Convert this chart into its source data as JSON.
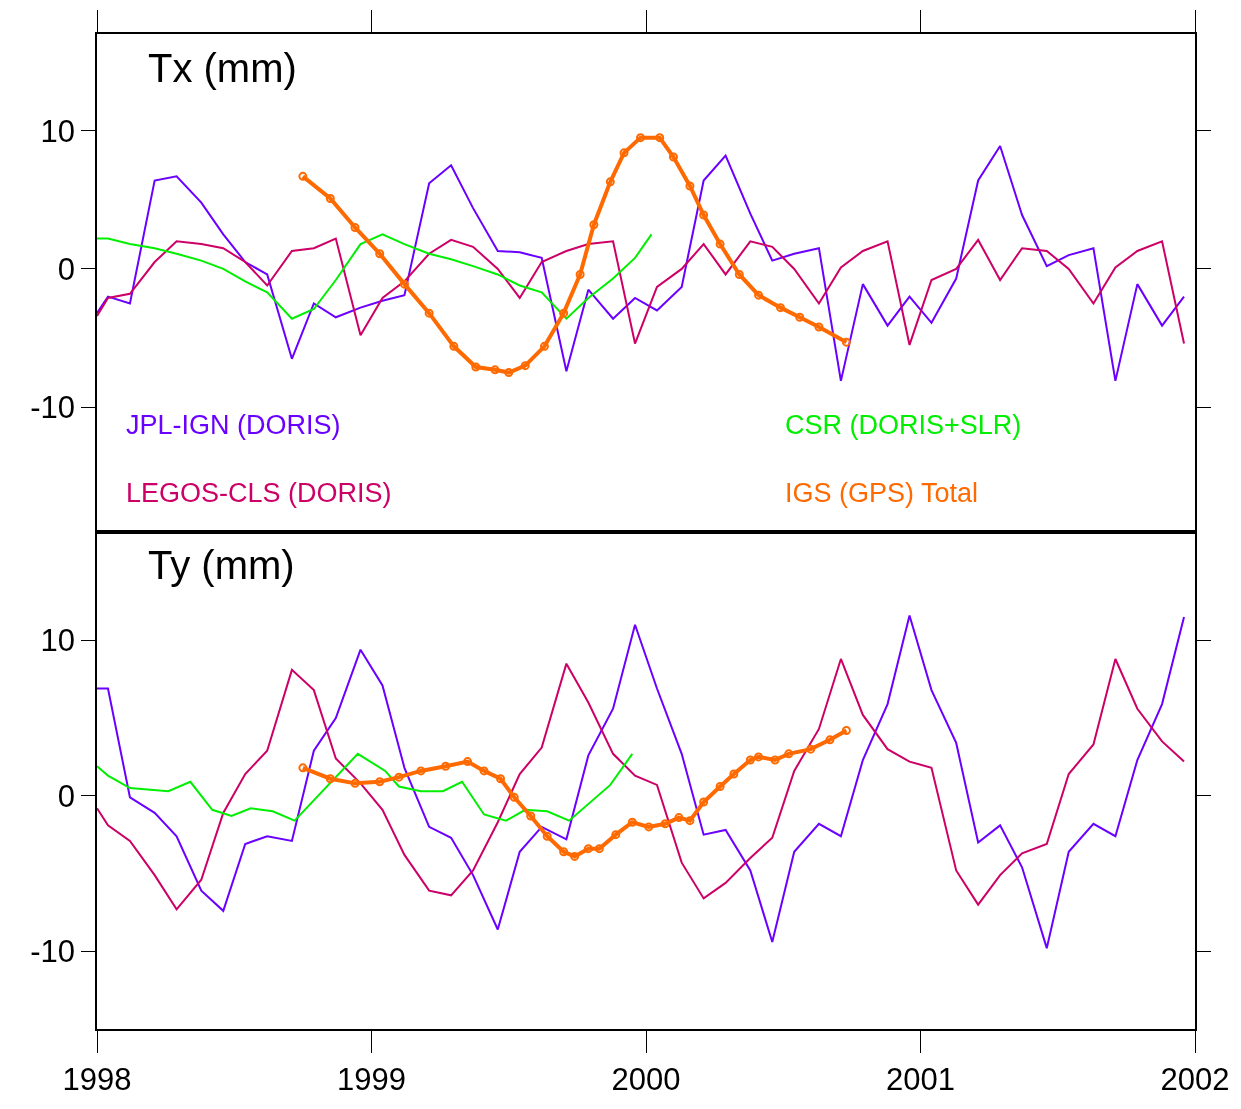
{
  "chart_data": [
    {
      "type": "line",
      "title": "Tx (mm)",
      "xlim": [
        1998,
        2002
      ],
      "xticks": [
        1998,
        1999,
        2000,
        2001,
        2002
      ],
      "ylim": [
        -19,
        17
      ],
      "yticks": [
        -10,
        0,
        10
      ],
      "tick_labels": "y",
      "grid": false,
      "series": [
        {
          "name": "JPL-IGN (DORIS)",
          "color": "#6a00ff",
          "x": [
            1998.0,
            1998.04,
            1998.12,
            1998.21,
            1998.29,
            1998.38,
            1998.46,
            1998.54,
            1998.62,
            1998.71,
            1998.79,
            1998.87,
            1998.96,
            1999.04,
            1999.12,
            1999.21,
            1999.29,
            1999.37,
            1999.46,
            1999.54,
            1999.62,
            1999.71,
            1999.79,
            1999.88,
            1999.96,
            2000.04,
            2000.13,
            2000.21,
            2000.29,
            2000.38,
            2000.46,
            2000.54,
            2000.63,
            2000.71,
            2000.79,
            2000.88,
            2000.96,
            2001.04,
            2001.13,
            2001.21,
            2001.29,
            2001.37,
            2001.46,
            2001.54,
            2001.63,
            2001.71,
            2001.79,
            2001.88,
            2001.96
          ],
          "values": [
            -3.2,
            -2.0,
            -2.5,
            6.4,
            6.7,
            4.8,
            2.5,
            0.5,
            -0.4,
            -6.5,
            -2.5,
            -3.5,
            -2.8,
            -2.3,
            -1.9,
            6.2,
            7.5,
            4.4,
            1.3,
            1.2,
            0.8,
            -7.4,
            -1.5,
            -3.6,
            -2.1,
            -3.0,
            -1.3,
            6.4,
            8.2,
            4.0,
            0.6,
            1.1,
            1.5,
            -8.1,
            -1.1,
            -4.1,
            -2.0,
            -3.9,
            -0.7,
            6.4,
            8.9,
            3.9,
            0.2,
            1.0,
            1.5,
            -8.1,
            -1.1,
            -4.1,
            -2.0
          ]
        },
        {
          "name": "LEGOS-CLS (DORIS)",
          "color": "#cc0066",
          "x": [
            1998.0,
            1998.04,
            1998.12,
            1998.21,
            1998.29,
            1998.38,
            1998.46,
            1998.54,
            1998.62,
            1998.71,
            1998.79,
            1998.87,
            1998.96,
            1999.04,
            1999.12,
            1999.21,
            1999.29,
            1999.37,
            1999.46,
            1999.54,
            1999.62,
            1999.71,
            1999.79,
            1999.88,
            1999.96,
            2000.04,
            2000.13,
            2000.21,
            2000.29,
            2000.38,
            2000.46,
            2000.54,
            2000.63,
            2000.71,
            2000.79,
            2000.88,
            2000.96,
            2001.04,
            2001.13,
            2001.21,
            2001.29,
            2001.37,
            2001.46,
            2001.54,
            2001.63,
            2001.71,
            2001.79,
            2001.88,
            2001.96
          ],
          "values": [
            -3.4,
            -2.1,
            -1.8,
            0.5,
            2.0,
            1.8,
            1.5,
            0.5,
            -1.2,
            1.3,
            1.5,
            2.2,
            -4.8,
            -2.1,
            -0.9,
            1.1,
            2.1,
            1.6,
            0.0,
            -2.1,
            0.5,
            1.3,
            1.8,
            2.0,
            -5.4,
            -1.3,
            0.0,
            1.8,
            -0.4,
            2.0,
            1.6,
            0.0,
            -2.5,
            0.1,
            1.3,
            2.0,
            -5.5,
            -0.8,
            0.0,
            2.1,
            -0.8,
            1.5,
            1.3,
            0.0,
            -2.5,
            0.1,
            1.3,
            2.0,
            -5.4
          ]
        },
        {
          "name": "CSR (DORIS+SLR)",
          "color": "#00ee00",
          "x": [
            1998.0,
            1998.04,
            1998.12,
            1998.21,
            1998.29,
            1998.38,
            1998.46,
            1998.54,
            1998.62,
            1998.71,
            1998.79,
            1998.87,
            1998.96,
            1999.04,
            1999.12,
            1999.21,
            1999.29,
            1999.37,
            1999.46,
            1999.54,
            1999.62,
            1999.71,
            1999.79,
            1999.88,
            1999.96,
            2000.02
          ],
          "values": [
            2.2,
            2.2,
            1.8,
            1.5,
            1.1,
            0.6,
            0.0,
            -0.9,
            -1.7,
            -3.6,
            -2.9,
            -0.8,
            1.8,
            2.5,
            1.8,
            1.1,
            0.7,
            0.2,
            -0.4,
            -1.2,
            -1.7,
            -3.6,
            -2.1,
            -0.7,
            0.8,
            2.5
          ]
        },
        {
          "name": "IGS (GPS) Total",
          "color": "#ff6a00",
          "marker": "circle",
          "x": [
            1998.75,
            1998.85,
            1998.94,
            1999.03,
            1999.12,
            1999.21,
            1999.3,
            1999.38,
            1999.45,
            1999.5,
            1999.56,
            1999.63,
            1999.7,
            1999.76,
            1999.81,
            1999.87,
            1999.92,
            1999.98,
            2000.05,
            2000.1,
            2000.16,
            2000.21,
            2000.27,
            2000.34,
            2000.41,
            2000.49,
            2000.56,
            2000.63,
            2000.73
          ],
          "values": [
            6.7,
            5.1,
            3.0,
            1.1,
            -1.1,
            -3.2,
            -5.6,
            -7.1,
            -7.3,
            -7.5,
            -7.0,
            -5.6,
            -3.2,
            -0.4,
            3.2,
            6.3,
            8.4,
            9.5,
            9.5,
            8.1,
            6.0,
            3.9,
            1.8,
            -0.4,
            -1.9,
            -2.8,
            -3.5,
            -4.2,
            -5.3
          ]
        }
      ]
    },
    {
      "type": "line",
      "title": "Ty (mm)",
      "xlim": [
        1998,
        2002
      ],
      "xticks": [
        1998,
        1999,
        2000,
        2001,
        2002
      ],
      "ylim": [
        -15,
        17
      ],
      "yticks": [
        -10,
        0,
        10
      ],
      "grid": false,
      "series": [
        {
          "color": "#6a00ff",
          "x": [
            1998.0,
            1998.04,
            1998.12,
            1998.21,
            1998.29,
            1998.38,
            1998.46,
            1998.54,
            1998.62,
            1998.71,
            1998.79,
            1998.87,
            1998.96,
            1999.04,
            1999.12,
            1999.21,
            1999.29,
            1999.37,
            1999.46,
            1999.54,
            1999.62,
            1999.71,
            1999.79,
            1999.88,
            1999.96,
            2000.04,
            2000.13,
            2000.21,
            2000.29,
            2000.38,
            2000.46,
            2000.54,
            2000.63,
            2000.71,
            2000.79,
            2000.88,
            2000.96,
            2001.04,
            2001.13,
            2001.21,
            2001.29,
            2001.37,
            2001.46,
            2001.54,
            2001.63,
            2001.71,
            2001.79,
            2001.88,
            2001.96
          ],
          "values": [
            6.9,
            6.9,
            -0.1,
            -1.1,
            -2.6,
            -6.1,
            -7.4,
            -3.1,
            -2.6,
            -2.9,
            2.9,
            5.0,
            9.4,
            7.1,
            1.8,
            -2.0,
            -2.7,
            -5.1,
            -8.6,
            -3.6,
            -2.0,
            -2.8,
            2.6,
            5.6,
            11.0,
            6.9,
            2.7,
            -2.5,
            -2.2,
            -4.8,
            -9.4,
            -3.6,
            -1.8,
            -2.6,
            2.3,
            5.9,
            11.6,
            6.8,
            3.4,
            -3.0,
            -1.9,
            -4.6,
            -9.8,
            -3.6,
            -1.8,
            -2.6,
            2.3,
            5.9,
            11.5
          ]
        },
        {
          "color": "#cc0066",
          "x": [
            1998.0,
            1998.04,
            1998.12,
            1998.21,
            1998.29,
            1998.38,
            1998.46,
            1998.54,
            1998.62,
            1998.71,
            1998.79,
            1998.87,
            1998.96,
            1999.04,
            1999.12,
            1999.21,
            1999.29,
            1999.37,
            1999.46,
            1999.54,
            1999.62,
            1999.71,
            1999.79,
            1999.88,
            1999.96,
            2000.04,
            2000.13,
            2000.21,
            2000.29,
            2000.38,
            2000.46,
            2000.54,
            2000.63,
            2000.71,
            2000.79,
            2000.88,
            2000.96,
            2001.04,
            2001.13,
            2001.21,
            2001.29,
            2001.37,
            2001.46,
            2001.54,
            2001.63,
            2001.71,
            2001.79,
            2001.88,
            2001.96
          ],
          "values": [
            -0.8,
            -1.9,
            -2.9,
            -5.1,
            -7.3,
            -5.4,
            -1.1,
            1.4,
            2.9,
            8.1,
            6.8,
            2.4,
            0.8,
            -0.9,
            -3.8,
            -6.1,
            -6.4,
            -4.8,
            -1.7,
            1.4,
            3.1,
            8.5,
            6.0,
            2.7,
            1.3,
            0.7,
            -4.3,
            -6.6,
            -5.6,
            -4.0,
            -2.7,
            1.6,
            4.3,
            8.8,
            5.2,
            3.0,
            2.2,
            1.8,
            -4.8,
            -7.0,
            -5.1,
            -3.7,
            -3.1,
            1.4,
            3.3,
            8.8,
            5.6,
            3.5,
            2.2
          ]
        },
        {
          "color": "#00ee00",
          "x": [
            1998.0,
            1998.04,
            1998.12,
            1998.26,
            1998.34,
            1998.42,
            1998.49,
            1998.56,
            1998.64,
            1998.72,
            1998.95,
            1999.05,
            1999.1,
            1999.18,
            1999.26,
            1999.33,
            1999.41,
            1999.49,
            1999.56,
            1999.64,
            1999.72,
            1999.87,
            1999.95
          ],
          "values": [
            1.9,
            1.3,
            0.5,
            0.3,
            0.9,
            -0.9,
            -1.3,
            -0.8,
            -1.0,
            -1.6,
            2.7,
            1.6,
            0.6,
            0.3,
            0.3,
            0.9,
            -1.2,
            -1.6,
            -0.9,
            -1.0,
            -1.6,
            0.7,
            2.7
          ]
        },
        {
          "color": "#ff6a00",
          "marker": "circle",
          "x": [
            1998.75,
            1998.85,
            1998.94,
            1999.03,
            1999.1,
            1999.18,
            1999.27,
            1999.35,
            1999.41,
            1999.47,
            1999.52,
            1999.58,
            1999.64,
            1999.7,
            1999.74,
            1999.79,
            1999.83,
            1999.89,
            1999.95,
            2000.01,
            2000.07,
            2000.12,
            2000.16,
            2000.21,
            2000.27,
            2000.32,
            2000.38,
            2000.41,
            2000.47,
            2000.52,
            2000.6,
            2000.67,
            2000.73
          ],
          "values": [
            1.8,
            1.1,
            0.8,
            0.9,
            1.2,
            1.6,
            1.9,
            2.2,
            1.6,
            1.1,
            -0.1,
            -1.3,
            -2.6,
            -3.6,
            -3.9,
            -3.4,
            -3.4,
            -2.5,
            -1.7,
            -2.0,
            -1.8,
            -1.4,
            -1.6,
            -0.4,
            0.6,
            1.4,
            2.3,
            2.5,
            2.3,
            2.7,
            3.0,
            3.6,
            4.2
          ]
        }
      ]
    }
  ]
}
